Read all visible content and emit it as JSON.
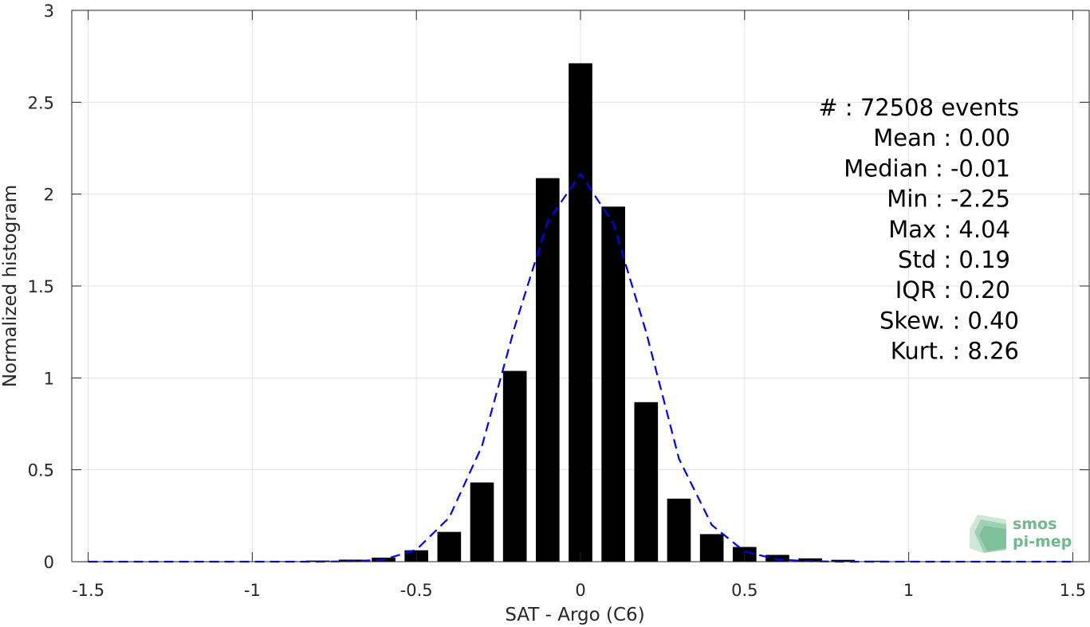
{
  "chart_data": {
    "type": "bar",
    "xlabel": "SAT - Argo (C6)",
    "ylabel": "Normalized histogram",
    "xlim": [
      -1.55,
      1.55
    ],
    "ylim": [
      0,
      3
    ],
    "xticks": [
      -1.5,
      -1,
      -0.5,
      0,
      0.5,
      1,
      1.5
    ],
    "xtick_labels": [
      "-1.5",
      "-1",
      "-0.5",
      "0",
      "0.5",
      "1",
      "1.5"
    ],
    "yticks": [
      0,
      0.5,
      1,
      1.5,
      2,
      2.5,
      3
    ],
    "ytick_labels": [
      "0",
      "0.5",
      "1",
      "1.5",
      "2",
      "2.5",
      "3"
    ],
    "grid": true,
    "bar_color": "#000000",
    "bars": {
      "x": [
        -1.5,
        -1.4,
        -1.3,
        -1.2,
        -1.1,
        -1.0,
        -0.9,
        -0.8,
        -0.7,
        -0.6,
        -0.5,
        -0.4,
        -0.3,
        -0.2,
        -0.1,
        0.0,
        0.1,
        0.2,
        0.3,
        0.4,
        0.5,
        0.6,
        0.7,
        0.8,
        0.9,
        1.0,
        1.1,
        1.2,
        1.3,
        1.4,
        1.5
      ],
      "values": [
        0.001,
        0.001,
        0.001,
        0.001,
        0.001,
        0.002,
        0.003,
        0.006,
        0.011,
        0.022,
        0.062,
        0.162,
        0.431,
        1.038,
        2.087,
        2.712,
        1.932,
        0.868,
        0.343,
        0.15,
        0.08,
        0.037,
        0.018,
        0.01,
        0.005,
        0.003,
        0.002,
        0.001,
        0.001,
        0.001,
        0.001
      ]
    },
    "fit_line": {
      "style": "dashed",
      "color": "#0000ff",
      "x": [
        -1.5,
        -1.4,
        -1.3,
        -1.2,
        -1.1,
        -1.0,
        -0.9,
        -0.8,
        -0.7,
        -0.6,
        -0.5,
        -0.4,
        -0.3,
        -0.2,
        -0.1,
        0.0,
        0.1,
        0.2,
        0.3,
        0.4,
        0.5,
        0.6,
        0.7,
        0.8,
        0.9,
        1.0,
        1.1,
        1.2,
        1.3,
        1.4,
        1.5
      ],
      "values": [
        0,
        0,
        0,
        0,
        0,
        0,
        0,
        0,
        0.002,
        0.011,
        0.065,
        0.24,
        0.63,
        1.28,
        1.85,
        2.11,
        1.84,
        1.25,
        0.56,
        0.2,
        0.055,
        0.012,
        0.002,
        0,
        0,
        0,
        0,
        0,
        0,
        0,
        0
      ]
    },
    "stats_text": [
      "#  : 72508 events",
      "Mean : 0.00",
      "Median : -0.01",
      "Min : -2.25",
      "Max : 4.04",
      "Std : 0.19",
      "IQR : 0.20",
      "Skew. : 0.40",
      "Kurt. : 8.26"
    ]
  },
  "logo": {
    "line1": "smos",
    "line2": "pi-mep",
    "color": "#6fb98f"
  }
}
